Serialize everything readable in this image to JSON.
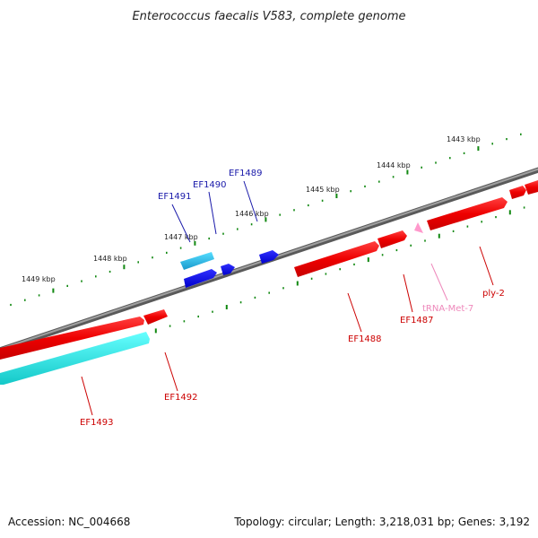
{
  "title": "Enterococcus faecalis V583, complete genome",
  "footer": {
    "accession": "Accession: NC_004668",
    "summary": "Topology: circular; Length: 3,218,031 bp; Genes: 3,192"
  },
  "colors": {
    "forward_gene": "#ee0000",
    "reverse_gene_dark": "#1010dd",
    "reverse_gene_light": "#22cccc",
    "trna": "#ff99cc",
    "backbone": "#888888",
    "ticks": "#118811",
    "label_red": "#cc0000",
    "label_blue": "#1a1aaa",
    "label_pink": "#ee88bb"
  },
  "kbp_labels": [
    "1443 kbp",
    "1444 kbp",
    "1445 kbp",
    "1446 kbp",
    "1447 kbp",
    "1448 kbp",
    "1449 kbp"
  ],
  "gene_labels": {
    "ef1489": "EF1489",
    "ef1490": "EF1490",
    "ef1491": "EF1491",
    "ef1492": "EF1492",
    "ef1493": "EF1493",
    "ef1488": "EF1488",
    "ef1487": "EF1487",
    "ply2": "ply-2",
    "trna_met7": "tRNA-Met-7"
  }
}
